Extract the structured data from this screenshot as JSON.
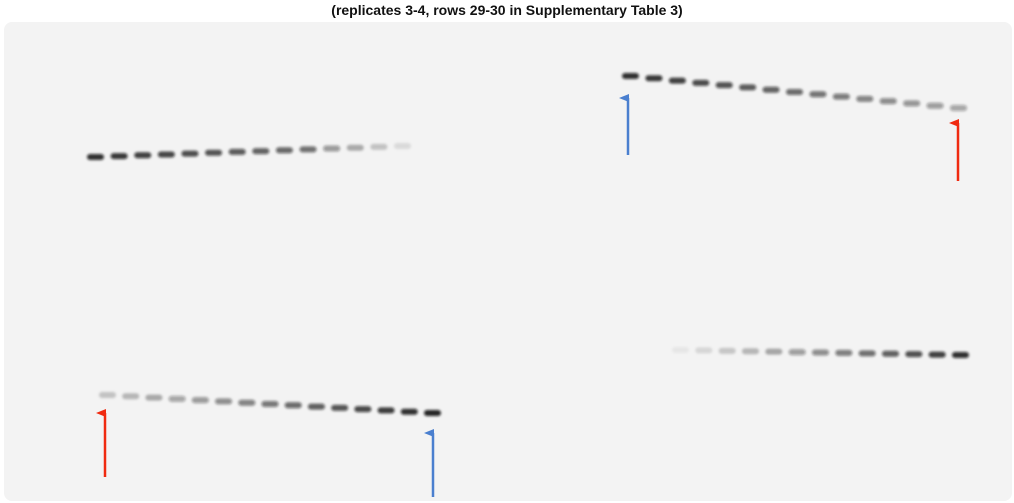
{
  "caption": "(replicates 3-4, rows 29-30 in Supplementary Table 3)"
}
